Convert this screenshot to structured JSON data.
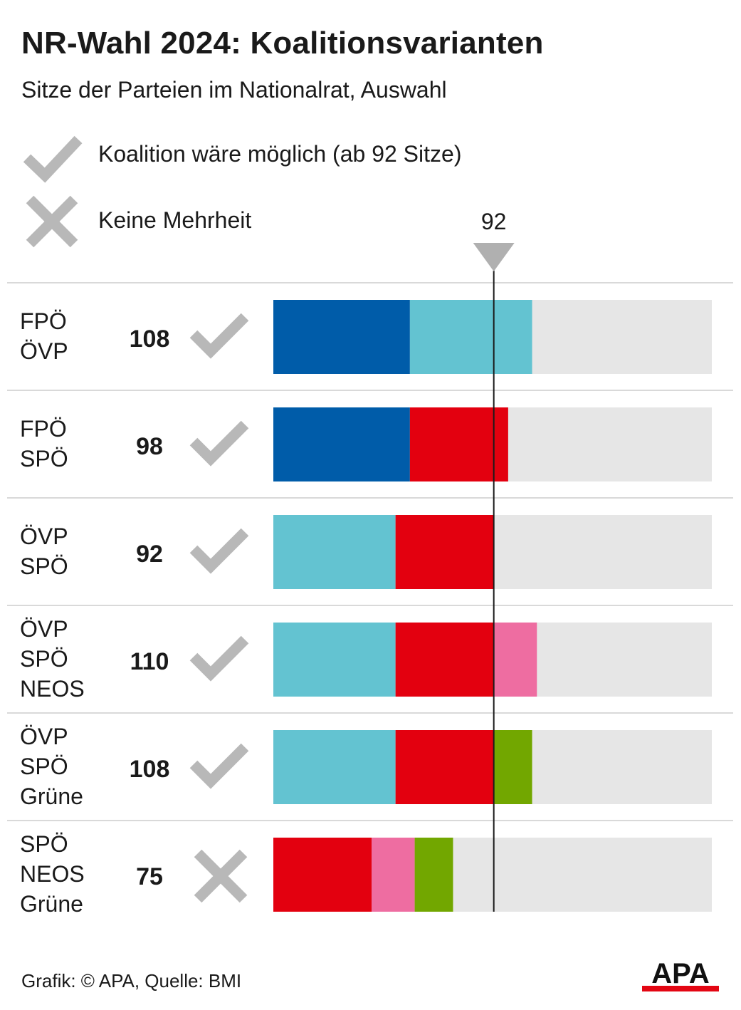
{
  "title": "NR-Wahl 2024: Koalitionsvarianten",
  "subtitle": "Sitze der Parteien im Nationalrat, Auswahl",
  "legend": {
    "possible": {
      "label": "Koalition wäre möglich (ab 92 Sitze)",
      "icon": "check-icon"
    },
    "no_majority": {
      "label": "Keine Mehrheit",
      "icon": "cross-icon"
    }
  },
  "icon_color": "#b8b8b8",
  "footer": "Grafik: © APA, Quelle: BMI",
  "logo": {
    "text": "APA",
    "accent": "#e30613"
  },
  "chart_data": {
    "type": "bar",
    "orientation": "horizontal",
    "stacked": true,
    "xlim": [
      0,
      183
    ],
    "reference_line": {
      "value": 92,
      "label": "92"
    },
    "party_colors": {
      "FPÖ": "#005ca9",
      "ÖVP": "#63c3d1",
      "SPÖ": "#e3000f",
      "NEOS": "#ee6da1",
      "Grüne": "#72a700"
    },
    "background_color": "#e6e6e6",
    "coalitions": [
      {
        "parties": [
          "FPÖ",
          "ÖVP"
        ],
        "seats": [
          57,
          51
        ],
        "total": "108",
        "majority": true
      },
      {
        "parties": [
          "FPÖ",
          "SPÖ"
        ],
        "seats": [
          57,
          41
        ],
        "total": "98",
        "majority": true
      },
      {
        "parties": [
          "ÖVP",
          "SPÖ"
        ],
        "seats": [
          51,
          41
        ],
        "total": "92",
        "majority": true
      },
      {
        "parties": [
          "ÖVP",
          "SPÖ",
          "NEOS"
        ],
        "seats": [
          51,
          41,
          18
        ],
        "total": "110",
        "majority": true
      },
      {
        "parties": [
          "ÖVP",
          "SPÖ",
          "Grüne"
        ],
        "seats": [
          51,
          41,
          16
        ],
        "total": "108",
        "majority": true
      },
      {
        "parties": [
          "SPÖ",
          "NEOS",
          "Grüne"
        ],
        "seats": [
          41,
          18,
          16
        ],
        "total": "75",
        "majority": false
      }
    ]
  }
}
